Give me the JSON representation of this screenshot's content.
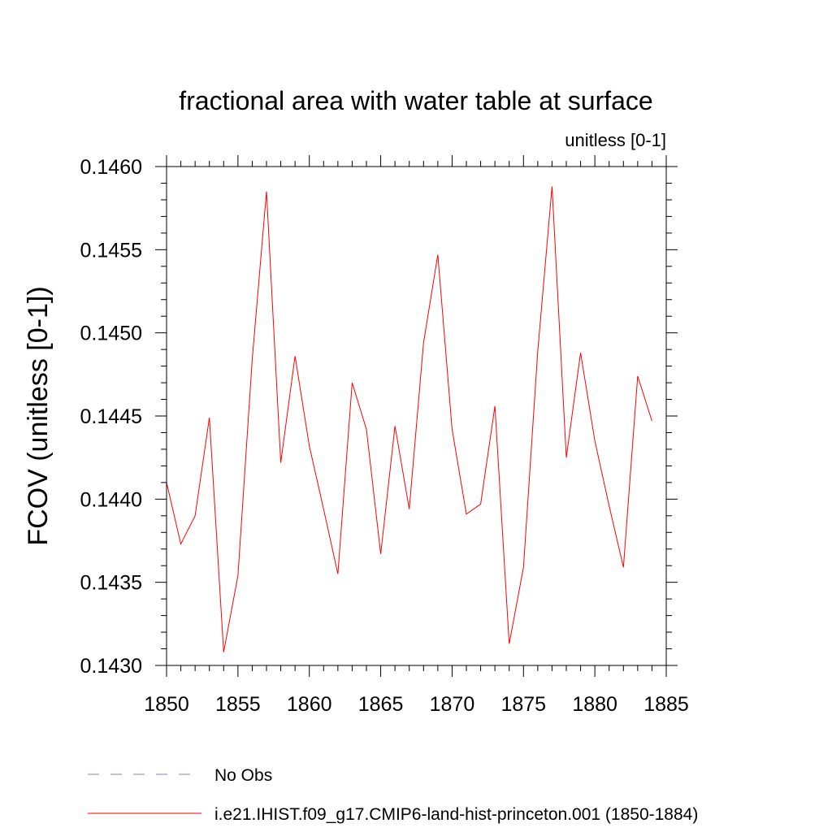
{
  "chart_data": {
    "type": "line",
    "title": "fractional area with water table at surface",
    "units_label": "unitless [0-1]",
    "ylabel": "FCOV  (unitless [0-1])",
    "xlabel": "",
    "xlim": [
      1850,
      1885
    ],
    "ylim": [
      0.143,
      0.146
    ],
    "x_ticks": [
      1850,
      1855,
      1860,
      1865,
      1870,
      1875,
      1880,
      1885
    ],
    "x_tick_labels": [
      "1850",
      "1855",
      "1860",
      "1865",
      "1870",
      "1875",
      "1880",
      "1885"
    ],
    "y_ticks": [
      0.143,
      0.1435,
      0.144,
      0.1445,
      0.145,
      0.1455,
      0.146
    ],
    "y_tick_labels": [
      "0.1430",
      "0.1435",
      "0.1440",
      "0.1445",
      "0.1450",
      "0.1455",
      "0.1460"
    ],
    "grid": false,
    "legend_position": "bottom",
    "series": [
      {
        "name": "i.e21.IHIST.f09_g17.CMIP6-land-hist-princeton.001 (1850-1884)",
        "color": "#ff0000",
        "style": "solid",
        "x": [
          1850,
          1851,
          1852,
          1853,
          1854,
          1855,
          1856,
          1857,
          1858,
          1859,
          1860,
          1861,
          1862,
          1863,
          1864,
          1865,
          1866,
          1867,
          1868,
          1869,
          1870,
          1871,
          1872,
          1873,
          1874,
          1875,
          1876,
          1877,
          1878,
          1879,
          1880,
          1881,
          1882,
          1883,
          1884
        ],
        "values": [
          0.1441,
          0.14373,
          0.1439,
          0.14449,
          0.14308,
          0.14354,
          0.14484,
          0.14585,
          0.14422,
          0.14486,
          0.14432,
          0.14394,
          0.14355,
          0.1447,
          0.14442,
          0.14367,
          0.14444,
          0.14394,
          0.14494,
          0.14547,
          0.14442,
          0.14391,
          0.14397,
          0.14456,
          0.14313,
          0.14359,
          0.14489,
          0.14588,
          0.14425,
          0.14488,
          0.14435,
          0.14396,
          0.14359,
          0.14474,
          0.14447
        ]
      }
    ],
    "legend": [
      {
        "label": "No Obs",
        "color": "#8080c0",
        "style": "dashed"
      },
      {
        "label": "i.e21.IHIST.f09_g17.CMIP6-land-hist-princeton.001 (1850-1884)",
        "color": "#ff0000",
        "style": "solid"
      }
    ]
  }
}
